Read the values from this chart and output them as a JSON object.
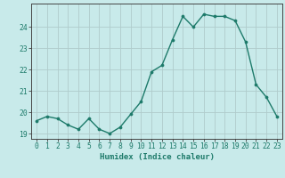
{
  "x": [
    0,
    1,
    2,
    3,
    4,
    5,
    6,
    7,
    8,
    9,
    10,
    11,
    12,
    13,
    14,
    15,
    16,
    17,
    18,
    19,
    20,
    21,
    22,
    23
  ],
  "y": [
    19.6,
    19.8,
    19.7,
    19.4,
    19.2,
    19.7,
    19.2,
    19.0,
    19.3,
    19.9,
    20.5,
    21.9,
    22.2,
    23.4,
    24.5,
    24.0,
    24.6,
    24.5,
    24.5,
    24.3,
    23.3,
    21.3,
    20.7,
    19.8
  ],
  "line_color": "#1d7a6a",
  "marker": "o",
  "marker_size": 2.2,
  "bg_color": "#c8eaea",
  "grid_color": "#b0cccc",
  "xlabel": "Humidex (Indice chaleur)",
  "xlim": [
    -0.5,
    23.5
  ],
  "ylim": [
    18.75,
    25.1
  ],
  "yticks": [
    19,
    20,
    21,
    22,
    23,
    24
  ],
  "xticks": [
    0,
    1,
    2,
    3,
    4,
    5,
    6,
    7,
    8,
    9,
    10,
    11,
    12,
    13,
    14,
    15,
    16,
    17,
    18,
    19,
    20,
    21,
    22,
    23
  ],
  "spine_color": "#444444",
  "font_color": "#1d7a6a",
  "label_fontsize": 6.5,
  "tick_fontsize": 5.8,
  "linewidth": 1.0
}
